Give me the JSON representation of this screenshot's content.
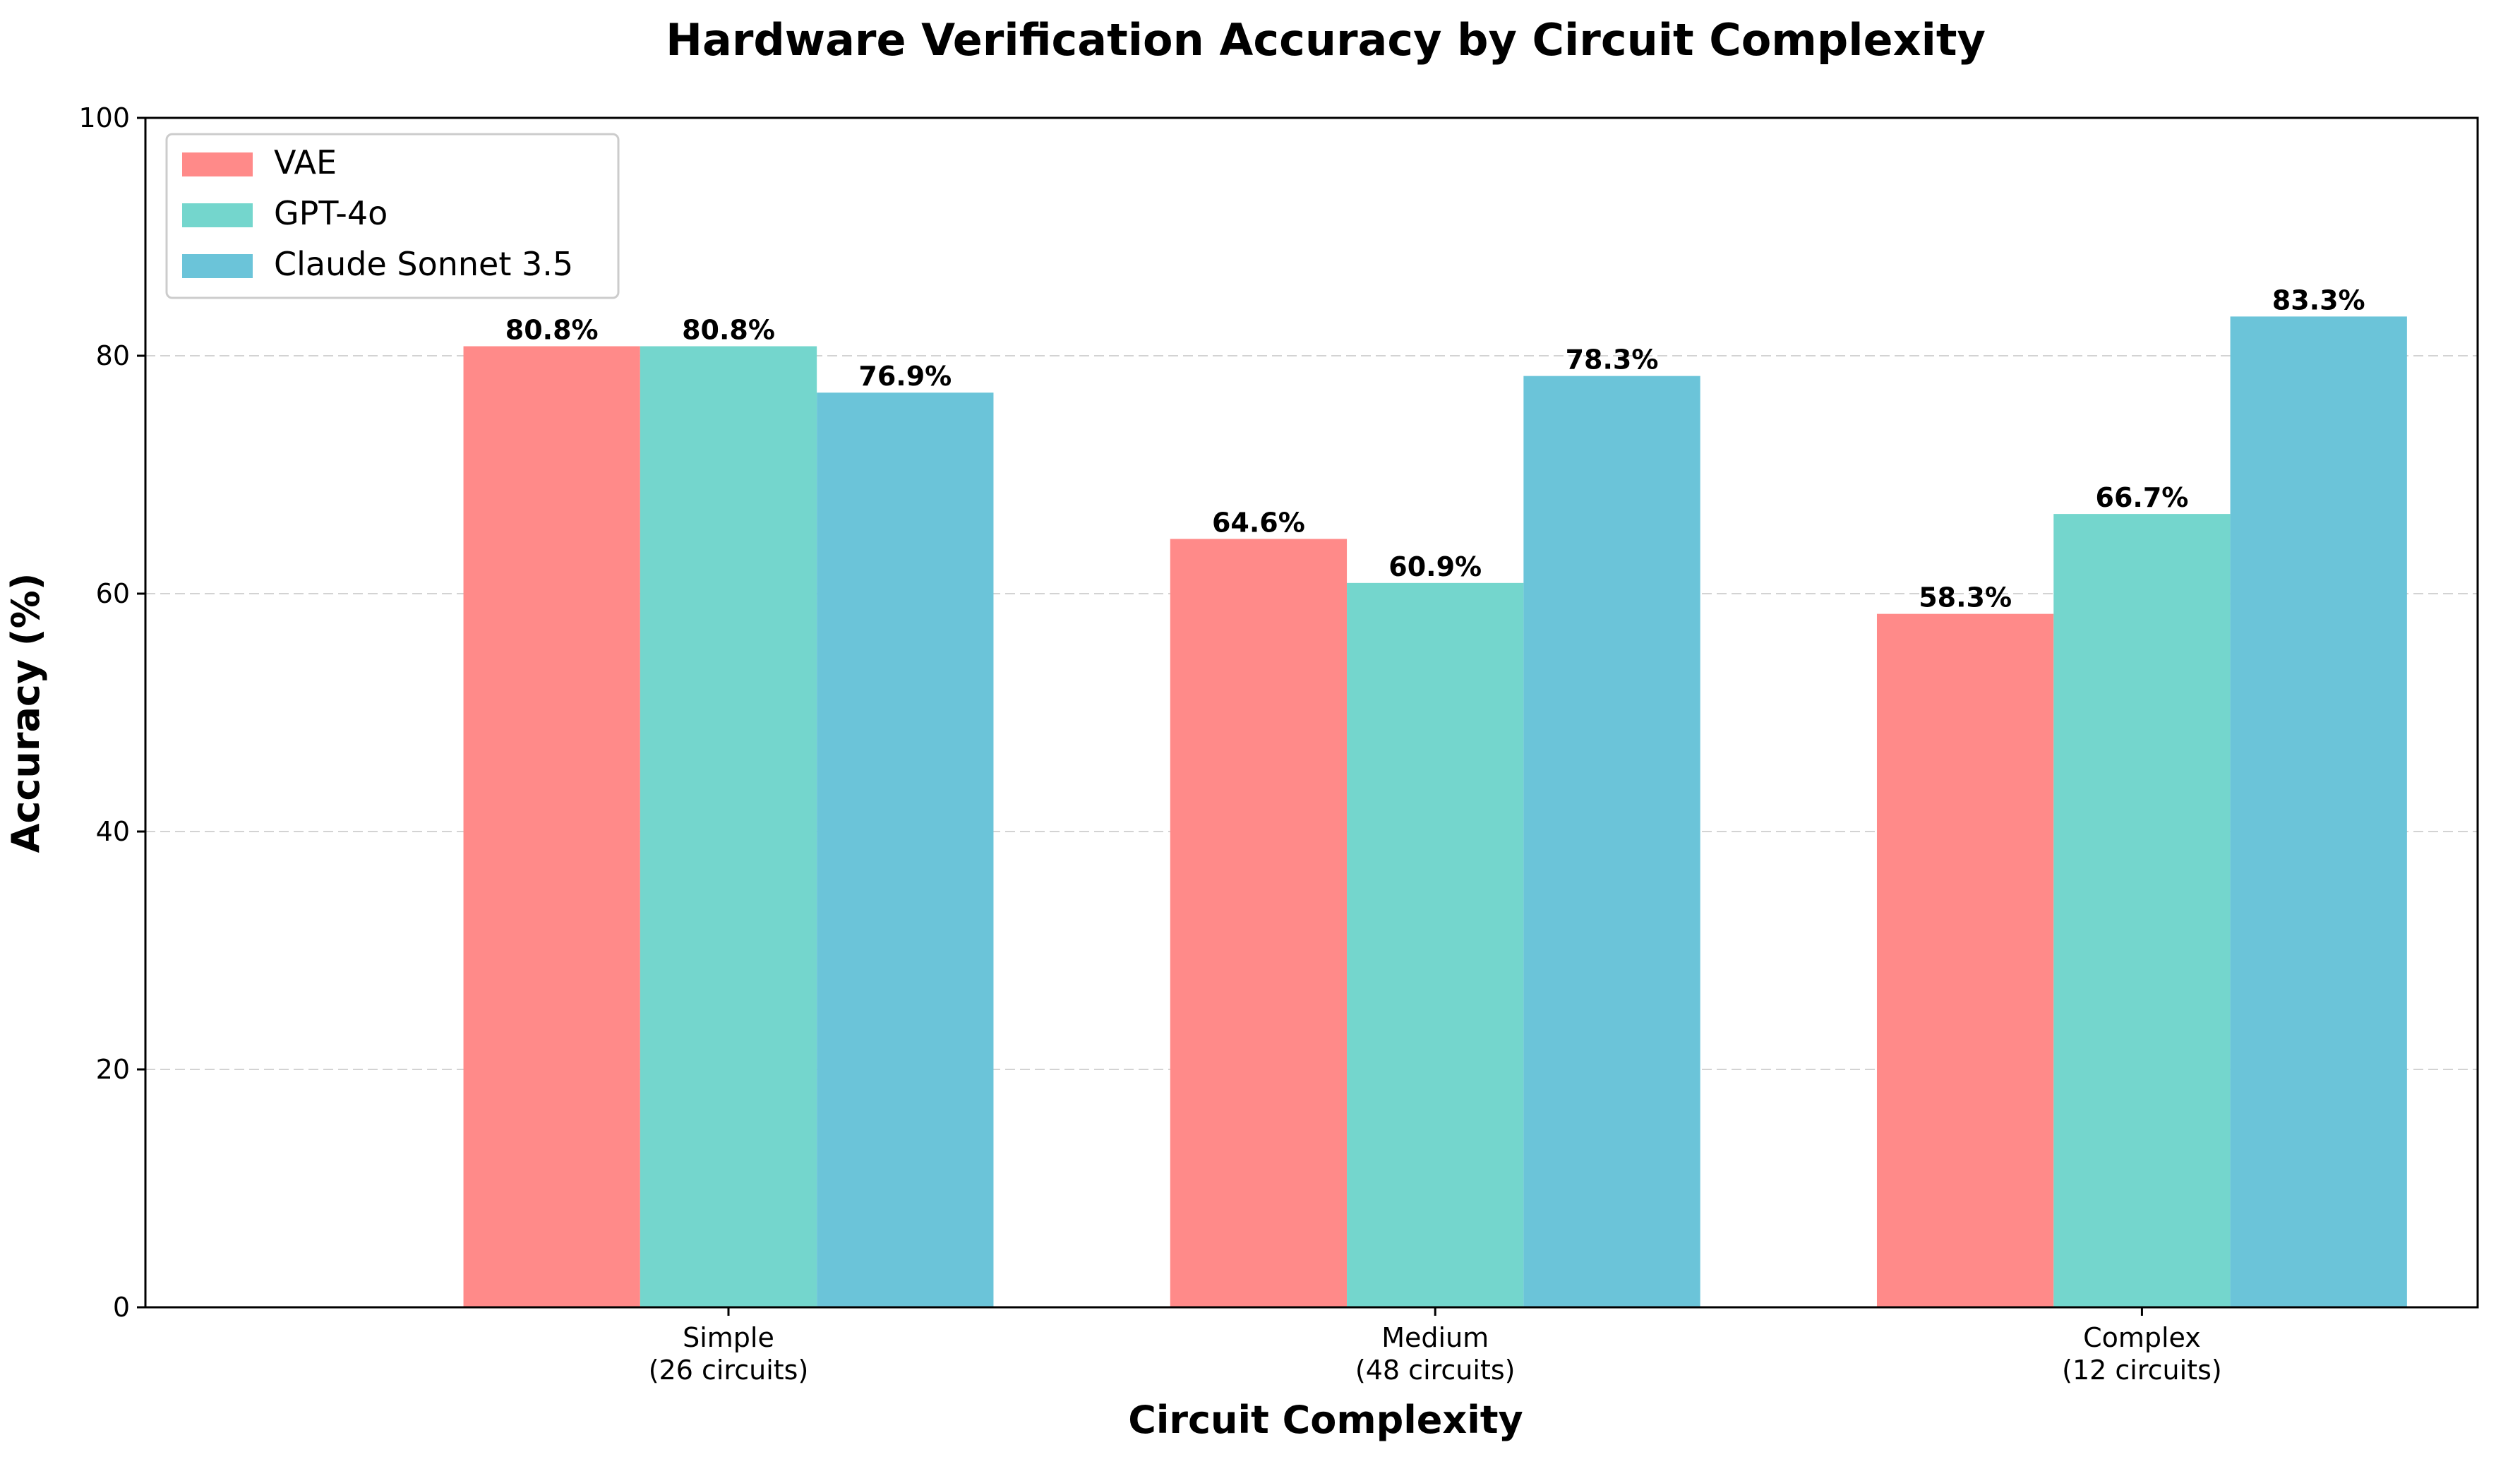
{
  "chart_data": {
    "type": "bar",
    "title": "Hardware Verification Accuracy by Circuit Complexity",
    "xlabel": "Circuit Complexity",
    "ylabel": "Accuracy (%)",
    "ylim": [
      0,
      100
    ],
    "yticks": [
      0,
      20,
      40,
      60,
      80,
      100
    ],
    "grid": "y-dashed",
    "legend_position": "top-left",
    "categories": [
      [
        "Simple",
        "(26 circuits)"
      ],
      [
        "Medium",
        "(48 circuits)"
      ],
      [
        "Complex",
        "(12 circuits)"
      ]
    ],
    "series": [
      {
        "name": "VAE",
        "color": "#ff8a89",
        "values": [
          80.8,
          64.6,
          58.3
        ],
        "labels": [
          "80.8%",
          "64.6%",
          "58.3%"
        ]
      },
      {
        "name": "GPT-4o",
        "color": "#74d6cd",
        "values": [
          80.8,
          60.9,
          66.7
        ],
        "labels": [
          "80.8%",
          "60.9%",
          "66.7%"
        ]
      },
      {
        "name": "Claude Sonnet 3.5",
        "color": "#6bc4d9",
        "values": [
          76.9,
          78.3,
          83.3
        ],
        "labels": [
          "76.9%",
          "78.3%",
          "83.3%"
        ]
      }
    ]
  }
}
